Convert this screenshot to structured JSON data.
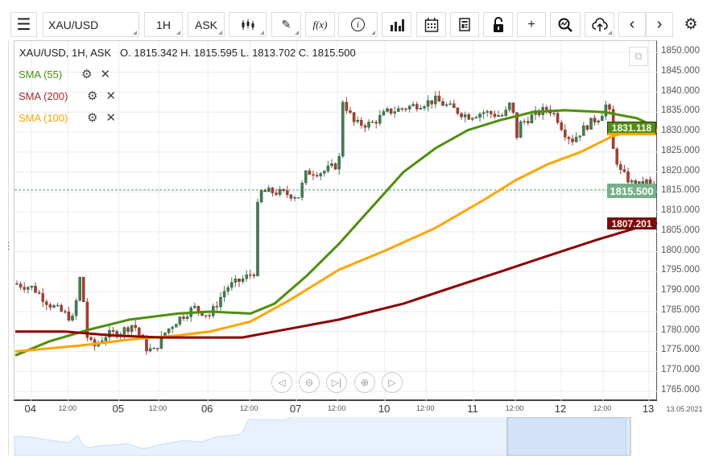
{
  "toolbar": {
    "symbol": "XAU/USD",
    "interval": "1H",
    "price_type": "ASK",
    "fx_label": "f(x)"
  },
  "legend": {
    "title": "XAU/USD, 1H, ASK",
    "ohlc": "O. 1815.342 H. 1815.595 L. 1813.702 C. 1815.500"
  },
  "indicators": [
    {
      "label": "SMA (55)",
      "color": "#4e8f0b"
    },
    {
      "label": "SMA (200)",
      "color": "#a52a2a"
    },
    {
      "label": "SMA (100)",
      "color": "#ffa500"
    }
  ],
  "price_labels": {
    "sma55": "1831.118",
    "last": "1815.500",
    "sma200": "1807.201"
  },
  "chart_data": {
    "type": "candlestick",
    "ylim": [
      1762,
      1852
    ],
    "yticks": [
      "1850.000",
      "1845.000",
      "1840.000",
      "1835.000",
      "1830.000",
      "1825.000",
      "1820.000",
      "1815.000",
      "1810.000",
      "1805.000",
      "1800.000",
      "1795.000",
      "1790.000",
      "1785.000",
      "1780.000",
      "1775.000",
      "1770.000",
      "1765.000"
    ],
    "xticks": [
      {
        "label": "04",
        "bar": 4.3,
        "major": true
      },
      {
        "label": "12:00",
        "bar": 14.3,
        "major": false
      },
      {
        "label": "05",
        "bar": 28,
        "major": true
      },
      {
        "label": "12:00",
        "bar": 38.7,
        "major": false
      },
      {
        "label": "06",
        "bar": 52,
        "major": true
      },
      {
        "label": "12:00",
        "bar": 63.3,
        "major": false
      },
      {
        "label": "07",
        "bar": 75.9,
        "major": true
      },
      {
        "label": "12:00",
        "bar": 87,
        "major": false
      },
      {
        "label": "10",
        "bar": 99.8,
        "major": true
      },
      {
        "label": "12:00",
        "bar": 110.9,
        "major": false
      },
      {
        "label": "11",
        "bar": 123.7,
        "major": true
      },
      {
        "label": "12:00",
        "bar": 135,
        "major": false
      },
      {
        "label": "12",
        "bar": 147.4,
        "major": true
      },
      {
        "label": "12:00",
        "bar": 158.7,
        "major": false
      },
      {
        "label": "13",
        "bar": 171.1,
        "major": true
      }
    ],
    "end_date": "13.05.2021",
    "n_bars": 173,
    "last_price": 1815.5,
    "price_path": [
      [
        0,
        1792
      ],
      [
        4.8,
        1791
      ],
      [
        9.1,
        1787
      ],
      [
        12.4,
        1785
      ],
      [
        15.7,
        1783
      ],
      [
        17.8,
        1795
      ],
      [
        19.3,
        1779
      ],
      [
        21.1,
        1776
      ],
      [
        24.3,
        1779
      ],
      [
        28.7,
        1780
      ],
      [
        32,
        1782
      ],
      [
        35.2,
        1776
      ],
      [
        37.4,
        1775
      ],
      [
        40.7,
        1780
      ],
      [
        43.9,
        1783
      ],
      [
        48.3,
        1786
      ],
      [
        52.6,
        1784
      ],
      [
        57,
        1791
      ],
      [
        61.3,
        1793
      ],
      [
        64.6,
        1795
      ],
      [
        65.7,
        1815
      ],
      [
        70,
        1815
      ],
      [
        76.5,
        1814
      ],
      [
        78.7,
        1820
      ],
      [
        83,
        1820
      ],
      [
        87.4,
        1822
      ],
      [
        88.5,
        1838
      ],
      [
        91.7,
        1832
      ],
      [
        96.1,
        1832
      ],
      [
        100.4,
        1835
      ],
      [
        104.8,
        1836
      ],
      [
        109.1,
        1837
      ],
      [
        113.5,
        1838
      ],
      [
        117.8,
        1836
      ],
      [
        122.2,
        1834
      ],
      [
        126.5,
        1835
      ],
      [
        132,
        1834
      ],
      [
        134.1,
        1838
      ],
      [
        135.2,
        1828
      ],
      [
        136.3,
        1832
      ],
      [
        139.6,
        1834
      ],
      [
        143.9,
        1836
      ],
      [
        146.1,
        1834
      ],
      [
        148.3,
        1830
      ],
      [
        150.4,
        1828
      ],
      [
        154.8,
        1832
      ],
      [
        158,
        1834
      ],
      [
        160.2,
        1838
      ],
      [
        161.3,
        1826
      ],
      [
        163.5,
        1820
      ],
      [
        167.8,
        1816
      ],
      [
        170,
        1818
      ],
      [
        172.6,
        1815.5
      ]
    ],
    "series": [
      {
        "name": "SMA (55)",
        "color": "#4e8f0b",
        "points": [
          [
            0,
            1774
          ],
          [
            9.1,
            1777.5
          ],
          [
            20,
            1780.5
          ],
          [
            30.9,
            1783
          ],
          [
            43.9,
            1784.5
          ],
          [
            52.6,
            1785
          ],
          [
            63.5,
            1784.5
          ],
          [
            70,
            1787
          ],
          [
            78.7,
            1794
          ],
          [
            87.4,
            1802
          ],
          [
            96.1,
            1811
          ],
          [
            104.8,
            1820
          ],
          [
            113.5,
            1826
          ],
          [
            122.2,
            1830.5
          ],
          [
            130.9,
            1833
          ],
          [
            139.6,
            1835
          ],
          [
            148.3,
            1835.5
          ],
          [
            159.1,
            1835
          ],
          [
            167.8,
            1833.5
          ],
          [
            173.3,
            1831.1
          ]
        ]
      },
      {
        "name": "SMA (100)",
        "color": "#ffa500",
        "points": [
          [
            0,
            1775
          ],
          [
            17.8,
            1776.5
          ],
          [
            30.9,
            1778
          ],
          [
            43.9,
            1779
          ],
          [
            52.6,
            1780
          ],
          [
            63.5,
            1782.5
          ],
          [
            74.3,
            1788
          ],
          [
            87.4,
            1795.5
          ],
          [
            100.4,
            1800.5
          ],
          [
            113.5,
            1806
          ],
          [
            126.5,
            1813
          ],
          [
            135.2,
            1818
          ],
          [
            143.9,
            1822
          ],
          [
            152.6,
            1825
          ],
          [
            161.3,
            1829
          ],
          [
            167.8,
            1830.5
          ],
          [
            173.3,
            1830.5
          ]
        ]
      },
      {
        "name": "SMA (200)",
        "color": "#8b0000",
        "points": [
          [
            0,
            1780
          ],
          [
            13.5,
            1780
          ],
          [
            26.5,
            1779
          ],
          [
            39.6,
            1778.5
          ],
          [
            61.3,
            1778.5
          ],
          [
            70,
            1780
          ],
          [
            87.4,
            1783
          ],
          [
            104.8,
            1787
          ],
          [
            117.8,
            1791
          ],
          [
            130.9,
            1795
          ],
          [
            143.9,
            1799
          ],
          [
            157,
            1803
          ],
          [
            167.8,
            1806
          ],
          [
            173.3,
            1807.2
          ]
        ]
      }
    ]
  }
}
